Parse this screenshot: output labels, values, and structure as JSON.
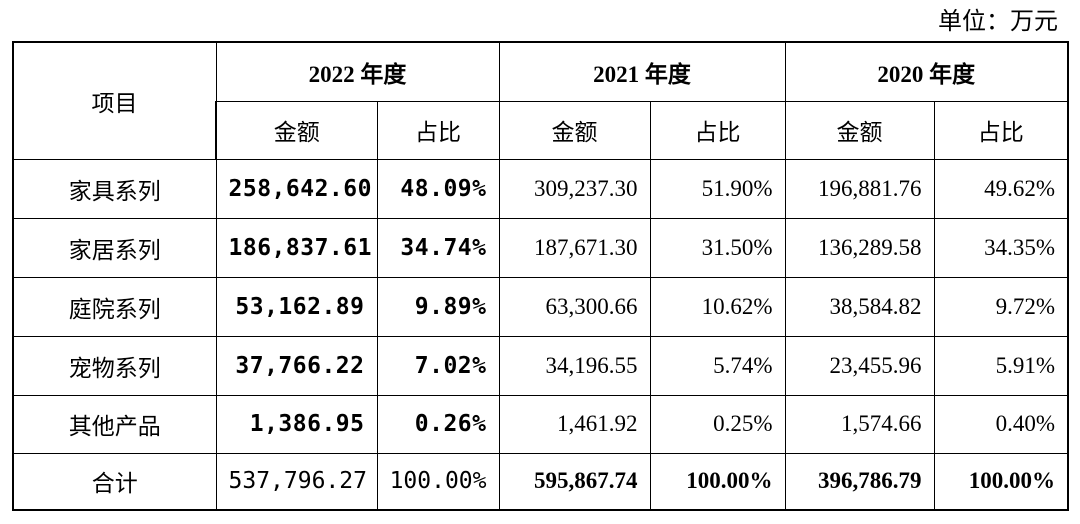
{
  "unit_label": "单位：万元",
  "header": {
    "item": "项目",
    "years": [
      "2022 年度",
      "2021 年度",
      "2020 年度"
    ],
    "amount": "金额",
    "ratio": "占比"
  },
  "rows": [
    {
      "item": "家具系列",
      "y2022_amount": "258,642.60",
      "y2022_ratio": "48.09%",
      "y2021_amount": "309,237.30",
      "y2021_ratio": "51.90%",
      "y2020_amount": "196,881.76",
      "y2020_ratio": "49.62%"
    },
    {
      "item": "家居系列",
      "y2022_amount": "186,837.61",
      "y2022_ratio": "34.74%",
      "y2021_amount": "187,671.30",
      "y2021_ratio": "31.50%",
      "y2020_amount": "136,289.58",
      "y2020_ratio": "34.35%"
    },
    {
      "item": "庭院系列",
      "y2022_amount": "53,162.89",
      "y2022_ratio": "9.89%",
      "y2021_amount": "63,300.66",
      "y2021_ratio": "10.62%",
      "y2020_amount": "38,584.82",
      "y2020_ratio": "9.72%"
    },
    {
      "item": "宠物系列",
      "y2022_amount": "37,766.22",
      "y2022_ratio": "7.02%",
      "y2021_amount": "34,196.55",
      "y2021_ratio": "5.74%",
      "y2020_amount": "23,455.96",
      "y2020_ratio": "5.91%"
    },
    {
      "item": "其他产品",
      "y2022_amount": "1,386.95",
      "y2022_ratio": "0.26%",
      "y2021_amount": "1,461.92",
      "y2021_ratio": "0.25%",
      "y2020_amount": "1,574.66",
      "y2020_ratio": "0.40%"
    }
  ],
  "total": {
    "item": "合计",
    "y2022_amount": "537,796.27",
    "y2022_ratio": "100.00%",
    "y2021_amount": "595,867.74",
    "y2021_ratio": "100.00%",
    "y2020_amount": "396,786.79",
    "y2020_ratio": "100.00%"
  }
}
